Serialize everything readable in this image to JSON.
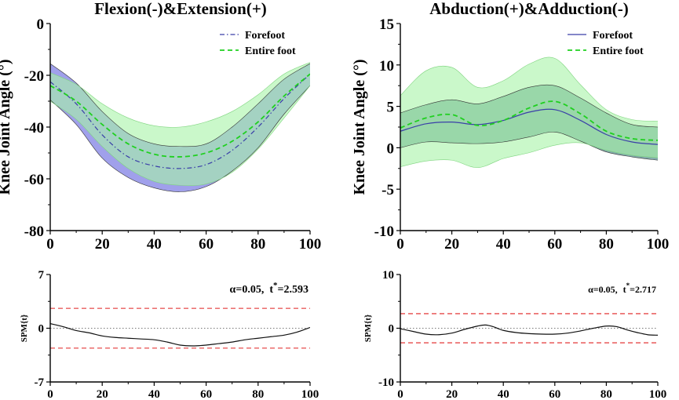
{
  "chart_data": [
    {
      "id": "p1",
      "type": "line",
      "title": "Flexion(-)&Extension(+)",
      "xlabel": "",
      "ylabel": "Knee Joint Angle (°)",
      "xlim": [
        0,
        100
      ],
      "ylim": [
        -80,
        0
      ],
      "xticks": [
        0,
        20,
        40,
        60,
        80,
        100
      ],
      "yticks": [
        0,
        -20,
        -40,
        -60,
        -80
      ],
      "legend": "top-right",
      "series": [
        {
          "name": "Forefoot",
          "style": "dash-dot",
          "color": "#3a3fa8",
          "band_color": "#8f8fe8",
          "x": [
            0,
            10,
            20,
            30,
            40,
            50,
            60,
            70,
            80,
            90,
            100
          ],
          "mean": [
            -22.5,
            -31,
            -43,
            -51.5,
            -55,
            -56,
            -54.5,
            -49,
            -40,
            -29,
            -19.5
          ],
          "upper": [
            -15.5,
            -23,
            -34,
            -42.5,
            -46.5,
            -47.5,
            -46.5,
            -40,
            -31,
            -21.5,
            -15.5
          ],
          "lower": [
            -29.5,
            -39,
            -52,
            -59.5,
            -63.5,
            -65,
            -63,
            -57,
            -48,
            -35,
            -24
          ]
        },
        {
          "name": "Entire foot",
          "style": "dashed",
          "color": "#1fd01f",
          "band_color": "#a6f3a6",
          "x": [
            0,
            10,
            20,
            30,
            40,
            50,
            60,
            70,
            80,
            90,
            100
          ],
          "mean": [
            -24,
            -30,
            -39,
            -46.5,
            -50.5,
            -51.5,
            -50,
            -45.5,
            -38,
            -28,
            -19.5
          ],
          "upper": [
            -19,
            -23.5,
            -31,
            -36.5,
            -39.5,
            -40,
            -38,
            -34,
            -27.5,
            -19.5,
            -15
          ],
          "lower": [
            -30,
            -37,
            -47.5,
            -56,
            -61,
            -62.5,
            -62,
            -57.5,
            -48.5,
            -36.5,
            -24
          ]
        }
      ]
    },
    {
      "id": "p2",
      "type": "line",
      "title": "Abduction(+)&Adduction(-)",
      "xlabel": "",
      "ylabel": "Knee Joint Angle (°)",
      "xlim": [
        0,
        100
      ],
      "ylim": [
        -10,
        15
      ],
      "xticks": [
        0,
        20,
        40,
        60,
        80,
        100
      ],
      "yticks": [
        15,
        10,
        5,
        0,
        -5,
        -10
      ],
      "legend": "top-right",
      "series": [
        {
          "name": "Forefoot",
          "style": "solid",
          "color": "#3a3fa8",
          "band_color": "#1f6a6a",
          "x": [
            0,
            10,
            20,
            30,
            40,
            50,
            60,
            70,
            80,
            90,
            100
          ],
          "mean": [
            2,
            2.9,
            3.1,
            2.8,
            3.3,
            4.3,
            4.6,
            3.3,
            1.6,
            0.7,
            0.4
          ],
          "upper": [
            4.2,
            5.2,
            5.8,
            5.3,
            6.2,
            7.3,
            7.5,
            6,
            4.2,
            2.8,
            2.5
          ],
          "lower": [
            0,
            0.7,
            0.6,
            0.5,
            0.7,
            1.3,
            1.9,
            0.8,
            -0.5,
            -1.1,
            -1.5
          ]
        },
        {
          "name": "Entire foot",
          "style": "dashed",
          "color": "#1fd01f",
          "band_color": "#a6f3a6",
          "x": [
            0,
            10,
            20,
            30,
            40,
            50,
            60,
            70,
            80,
            90,
            100
          ],
          "mean": [
            2.4,
            3.6,
            4,
            2.7,
            3.3,
            4.8,
            5.6,
            4.1,
            2,
            1.1,
            0.9
          ],
          "upper": [
            6.3,
            9.3,
            9.7,
            7.3,
            8.1,
            10.1,
            10.8,
            7.6,
            4.6,
            3.4,
            3.2
          ],
          "lower": [
            -2.3,
            -1.6,
            -1.5,
            -2.4,
            -1.3,
            -0.6,
            0.3,
            0.6,
            -0.3,
            -0.9,
            -1.2
          ]
        }
      ]
    },
    {
      "id": "p3",
      "type": "line",
      "title": "",
      "ylabel": "SPM{t}",
      "xlim": [
        0,
        100
      ],
      "ylim": [
        -7,
        7
      ],
      "xticks": [
        0,
        20,
        40,
        60,
        80,
        100
      ],
      "yticks": [
        7,
        0,
        -7
      ],
      "annotation": {
        "alpha": "α=0.05,",
        "t_prefix": "t",
        "t_sup": "*",
        "t_value": "=2.593"
      },
      "threshold": 2.593,
      "series": [
        {
          "name": "SPM{t}",
          "x": [
            0,
            5,
            10,
            15,
            20,
            25,
            30,
            35,
            40,
            45,
            50,
            55,
            60,
            65,
            70,
            75,
            80,
            85,
            90,
            95,
            100
          ],
          "values": [
            0.6,
            0.2,
            -0.3,
            -0.6,
            -1,
            -1.2,
            -1.3,
            -1.4,
            -1.5,
            -1.8,
            -2.2,
            -2.3,
            -2.2,
            -2,
            -1.8,
            -1.5,
            -1.3,
            -1.1,
            -0.9,
            -0.5,
            0.1
          ]
        }
      ]
    },
    {
      "id": "p4",
      "type": "line",
      "title": "",
      "ylabel": "SPM{t}",
      "xlim": [
        0,
        100
      ],
      "ylim": [
        -10,
        10
      ],
      "xticks": [
        0,
        20,
        40,
        60,
        80,
        100
      ],
      "yticks": [
        10,
        0,
        -10
      ],
      "annotation": {
        "alpha": "α=0.05,",
        "t_prefix": "t",
        "t_sup": "*",
        "t_value": "=2.717"
      },
      "threshold": 2.717,
      "series": [
        {
          "name": "SPM{t}",
          "x": [
            0,
            5,
            10,
            15,
            20,
            25,
            30,
            33,
            36,
            40,
            45,
            50,
            55,
            60,
            65,
            70,
            75,
            80,
            84,
            88,
            92,
            96,
            100
          ],
          "values": [
            -0.1,
            -0.6,
            -1.1,
            -1.2,
            -0.9,
            -0.2,
            0.4,
            0.6,
            0.3,
            -0.4,
            -0.8,
            -1,
            -1.1,
            -1.1,
            -0.9,
            -0.5,
            0,
            0.4,
            0.3,
            -0.3,
            -0.8,
            -1.2,
            -1.3
          ]
        }
      ]
    }
  ]
}
